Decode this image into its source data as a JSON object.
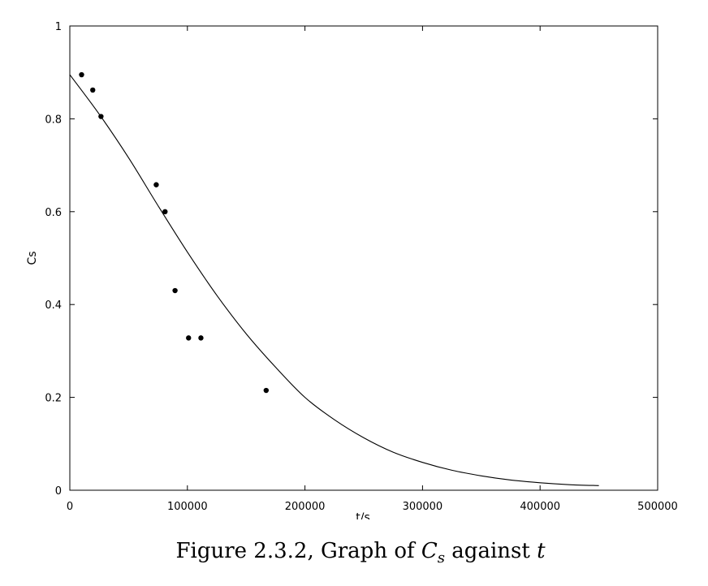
{
  "chart_data": {
    "type": "scatter",
    "xlabel": "t/s",
    "ylabel": "Cs",
    "xlim": [
      0,
      500000
    ],
    "ylim": [
      0,
      1
    ],
    "xticks": [
      0,
      100000,
      200000,
      300000,
      400000,
      500000
    ],
    "yticks": [
      0,
      0.2,
      0.4,
      0.6,
      0.8,
      1
    ],
    "xtick_labels": [
      "0",
      "100000",
      "200000",
      "300000",
      "400000",
      "500000"
    ],
    "ytick_labels": [
      "0",
      "0.2",
      "0.4",
      "0.6",
      "0.8",
      "1"
    ],
    "grid": false,
    "series": [
      {
        "kind": "scatter",
        "x": [
          10000,
          19500,
          26500,
          73500,
          81000,
          89500,
          101000,
          111500,
          167000
        ],
        "y": [
          0.895,
          0.862,
          0.805,
          0.658,
          0.6,
          0.43,
          0.328,
          0.328,
          0.215
        ]
      },
      {
        "kind": "line",
        "x": [
          0,
          25000,
          50000,
          75000,
          100000,
          125000,
          150000,
          175000,
          200000,
          225000,
          250000,
          275000,
          300000,
          325000,
          350000,
          375000,
          400000,
          425000,
          450000
        ],
        "y": [
          0.895,
          0.81,
          0.716,
          0.613,
          0.513,
          0.42,
          0.337,
          0.265,
          0.2,
          0.152,
          0.113,
          0.082,
          0.06,
          0.043,
          0.031,
          0.022,
          0.016,
          0.012,
          0.01
        ]
      }
    ]
  },
  "caption": {
    "prefix": "Figure 2.3.2, Graph of ",
    "symbol": "C",
    "subscript": "s",
    "middle": " against ",
    "variable": "t"
  }
}
